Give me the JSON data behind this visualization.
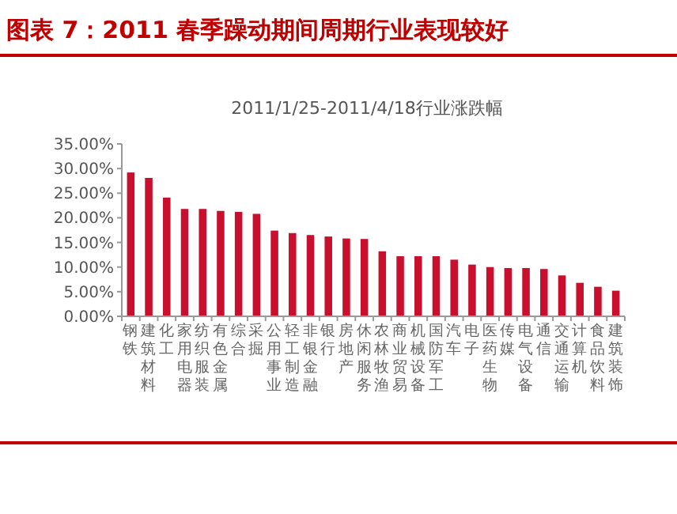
{
  "chart_data": {
    "type": "bar",
    "title": "图表 7：2011 春季躁动期间周期行业表现较好",
    "subtitle": "2011/1/25-2011/4/18行业涨跌幅",
    "categories": [
      "钢铁",
      "建筑材料",
      "化工",
      "家用电器",
      "纺织服装",
      "有色金属",
      "综合",
      "采掘",
      "公用事业",
      "轻工制造",
      "非银金融",
      "银行",
      "房地产",
      "休闲服务",
      "农林牧渔",
      "商业贸易",
      "机械设备",
      "国防军工",
      "汽车",
      "电子",
      "医药生物",
      "传媒",
      "电气设备",
      "通信",
      "交通运输",
      "计算机",
      "食品饮料",
      "建筑装饰"
    ],
    "values": [
      29.2,
      28.1,
      24.1,
      21.8,
      21.8,
      21.4,
      21.2,
      20.8,
      17.4,
      16.9,
      16.5,
      16.2,
      15.8,
      15.7,
      13.2,
      12.2,
      12.2,
      12.2,
      11.5,
      10.5,
      10.0,
      9.8,
      9.8,
      9.6,
      8.3,
      6.8,
      6.0,
      5.2
    ],
    "color": "#c8102e",
    "ylim": [
      0,
      35
    ],
    "yticks": [
      {
        "value": 0,
        "label": "0.00%"
      },
      {
        "value": 5,
        "label": "5.00%"
      },
      {
        "value": 10,
        "label": "10.00%"
      },
      {
        "value": 15,
        "label": "15.00%"
      },
      {
        "value": 20,
        "label": "20.00%"
      },
      {
        "value": 25,
        "label": "25.00%"
      },
      {
        "value": 30,
        "label": "30.00%"
      },
      {
        "value": 35,
        "label": "35.00%"
      }
    ],
    "grid": false
  }
}
